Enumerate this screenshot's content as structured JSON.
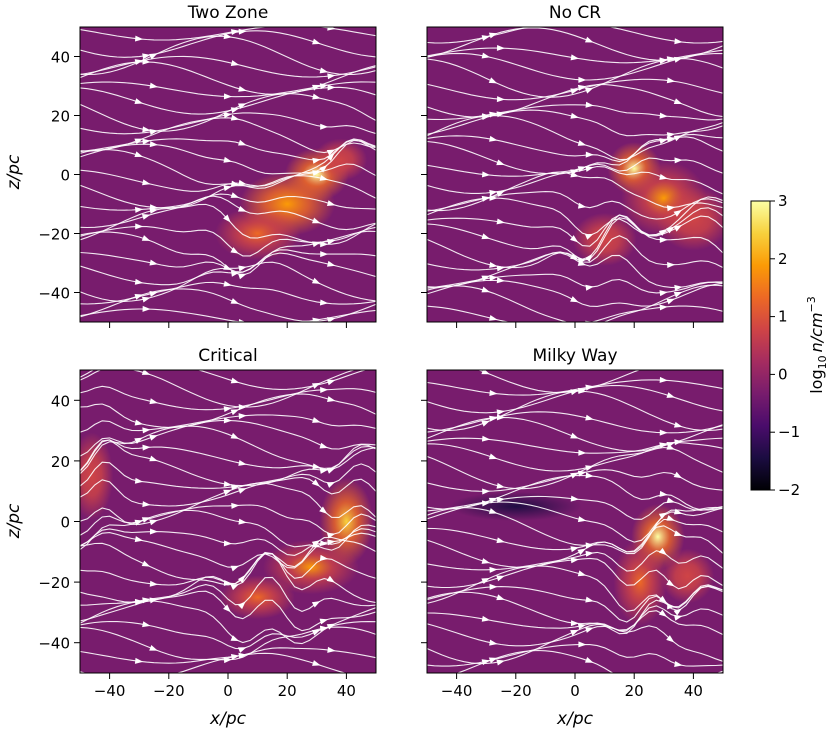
{
  "figure": {
    "colorbar": {
      "label": "log10 n / cm^-3",
      "label_main": "log",
      "label_sub": "10",
      "label_rest": "n/cm",
      "label_sup": "−3",
      "min": -2,
      "max": 3,
      "ticks": [
        3,
        2,
        1,
        0,
        -1,
        -2
      ],
      "tick_labels": [
        "3",
        "2",
        "1",
        "0",
        "−1",
        "−2"
      ],
      "colormap": "inferno",
      "colormap_stops": [
        "#000004",
        "#1b0c41",
        "#4a0c6b",
        "#781c6d",
        "#a52c60",
        "#cf4446",
        "#ed6925",
        "#fb9b06",
        "#f7d13d",
        "#fcffa4"
      ]
    },
    "shared_axes": {
      "xlabel": "x/pc",
      "ylabel": "z/pc",
      "xlim": [
        -50,
        50
      ],
      "ylim": [
        -50,
        50
      ]
    }
  },
  "chart_data": [
    {
      "type": "heatmap",
      "title": "Two Zone",
      "xlim": [
        -50,
        50
      ],
      "ylim": [
        -50,
        50
      ],
      "xticks": [
        -40,
        -20,
        0,
        20,
        40
      ],
      "yticks": [
        40,
        20,
        0,
        -20,
        -40
      ],
      "ytick_labels": [
        "40",
        "20",
        "0",
        "−20",
        "−40"
      ],
      "ylabel": "z/pc",
      "xlabel": "",
      "background_log_n": -0.3,
      "overlay": "magnetic field streamlines",
      "dense_clumps": [
        {
          "x": 30,
          "z": 0,
          "log_n": 2.8,
          "sx": 6,
          "sz": 5
        },
        {
          "x": 20,
          "z": -10,
          "log_n": 2.0,
          "sx": 9,
          "sz": 6
        },
        {
          "x": 10,
          "z": -20,
          "log_n": 1.2,
          "sx": 8,
          "sz": 5
        },
        {
          "x": 38,
          "z": 5,
          "log_n": 1.0,
          "sx": 5,
          "sz": 4
        }
      ]
    },
    {
      "type": "heatmap",
      "title": "No CR",
      "xlim": [
        -50,
        50
      ],
      "ylim": [
        -50,
        50
      ],
      "xticks": [
        -40,
        -20,
        0,
        20,
        40
      ],
      "yticks": [
        40,
        20,
        0,
        -20,
        -40
      ],
      "xlabel": "",
      "ylabel": "",
      "background_log_n": -0.4,
      "overlay": "magnetic field streamlines",
      "dense_clumps": [
        {
          "x": 20,
          "z": 2,
          "log_n": 2.8,
          "sx": 5,
          "sz": 5
        },
        {
          "x": 30,
          "z": -8,
          "log_n": 1.8,
          "sx": 8,
          "sz": 7
        },
        {
          "x": 10,
          "z": -22,
          "log_n": 1.0,
          "sx": 6,
          "sz": 5
        },
        {
          "x": 40,
          "z": -15,
          "log_n": 0.8,
          "sx": 7,
          "sz": 6
        }
      ]
    },
    {
      "type": "heatmap",
      "title": "Critical",
      "xlim": [
        -50,
        50
      ],
      "ylim": [
        -50,
        50
      ],
      "xticks": [
        -40,
        -20,
        0,
        20,
        40
      ],
      "xtick_labels": [
        "−40",
        "−20",
        "0",
        "20",
        "40"
      ],
      "yticks": [
        40,
        20,
        0,
        -20,
        -40
      ],
      "ytick_labels": [
        "40",
        "20",
        "0",
        "−20",
        "−40"
      ],
      "xlabel": "x/pc",
      "ylabel": "z/pc",
      "background_log_n": -0.3,
      "overlay": "magnetic field streamlines",
      "dense_clumps": [
        {
          "x": 40,
          "z": 0,
          "log_n": 2.6,
          "sx": 5,
          "sz": 8
        },
        {
          "x": 28,
          "z": -15,
          "log_n": 1.8,
          "sx": 9,
          "sz": 5
        },
        {
          "x": 10,
          "z": -25,
          "log_n": 1.3,
          "sx": 7,
          "sz": 4
        },
        {
          "x": -46,
          "z": 15,
          "log_n": 0.9,
          "sx": 4,
          "sz": 8
        }
      ]
    },
    {
      "type": "heatmap",
      "title": "Milky Way",
      "xlim": [
        -50,
        50
      ],
      "ylim": [
        -50,
        50
      ],
      "xticks": [
        -40,
        -20,
        0,
        20,
        40
      ],
      "xtick_labels": [
        "−40",
        "−20",
        "0",
        "20",
        "40"
      ],
      "yticks": [
        40,
        20,
        0,
        -20,
        -40
      ],
      "xlabel": "x/pc",
      "ylabel": "",
      "background_log_n": -0.5,
      "overlay": "magnetic field streamlines",
      "dense_clumps": [
        {
          "x": 28,
          "z": -5,
          "log_n": 2.8,
          "sx": 5,
          "sz": 6
        },
        {
          "x": 22,
          "z": -20,
          "log_n": 1.6,
          "sx": 5,
          "sz": 8
        },
        {
          "x": 38,
          "z": -18,
          "log_n": 0.9,
          "sx": 5,
          "sz": 5
        }
      ],
      "voids": [
        {
          "x": -20,
          "z": 5,
          "log_n": -1.5,
          "sx": 14,
          "sz": 3
        }
      ]
    }
  ]
}
